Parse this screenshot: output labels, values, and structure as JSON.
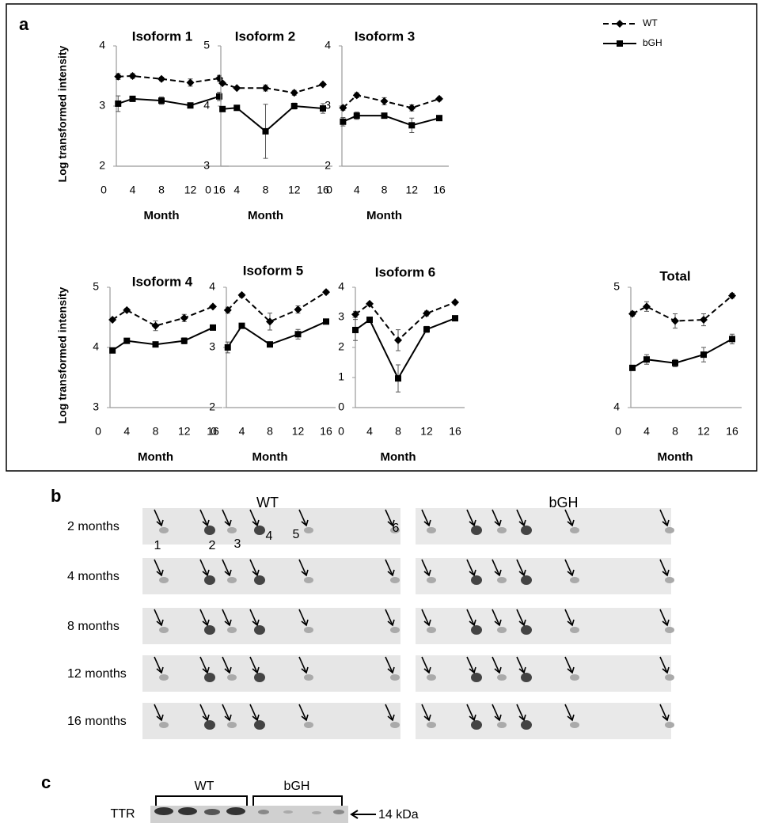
{
  "panel_a": {
    "label": "a"
  },
  "chart_data": [
    {
      "type": "line",
      "title": "Isoform 1",
      "xlabel": "Month",
      "ylabel": "Log transformed intensity",
      "x": [
        2,
        4,
        8,
        12,
        16
      ],
      "xlim": [
        0,
        16
      ],
      "xticks": [
        0,
        4,
        8,
        12,
        16
      ],
      "ylim": [
        2,
        4
      ],
      "yticks": [
        2,
        3,
        4
      ],
      "series": [
        {
          "name": "WT",
          "color": "#000000",
          "line_style": "dashed",
          "marker": "diamond",
          "values": [
            3.49,
            3.5,
            3.45,
            3.39,
            3.46
          ],
          "errors": [
            0.05,
            0.04,
            0.03,
            0.06,
            0.05
          ]
        },
        {
          "name": "bGH",
          "color": "#000000",
          "line_style": "solid",
          "marker": "square",
          "values": [
            3.04,
            3.12,
            3.09,
            3.01,
            3.16
          ],
          "errors": [
            0.13,
            0.04,
            0.06,
            0.04,
            0.07
          ]
        }
      ]
    },
    {
      "type": "line",
      "title": "Isoform 2",
      "xlabel": "Month",
      "x": [
        2,
        4,
        8,
        12,
        16
      ],
      "xlim": [
        0,
        16
      ],
      "xticks": [
        0,
        4,
        8,
        12,
        16
      ],
      "ylim": [
        3,
        5
      ],
      "yticks": [
        3,
        4,
        5
      ],
      "series": [
        {
          "name": "WT",
          "color": "#000000",
          "line_style": "dashed",
          "marker": "diamond",
          "values": [
            4.38,
            4.3,
            4.3,
            4.22,
            4.36
          ],
          "errors": [
            0.03,
            0.02,
            0.05,
            0.04,
            0.02
          ]
        },
        {
          "name": "bGH",
          "color": "#000000",
          "line_style": "solid",
          "marker": "square",
          "values": [
            3.95,
            3.97,
            3.58,
            4.0,
            3.96
          ],
          "errors": [
            0.02,
            0.02,
            0.45,
            0.05,
            0.08
          ]
        }
      ]
    },
    {
      "type": "line",
      "title": "Isoform 3",
      "xlabel": "Month",
      "legend": "upper right",
      "x": [
        2,
        4,
        8,
        12,
        16
      ],
      "xlim": [
        0,
        16
      ],
      "xticks": [
        0,
        4,
        8,
        12,
        16
      ],
      "ylim": [
        2,
        4
      ],
      "yticks": [
        2,
        3,
        4
      ],
      "series": [
        {
          "name": "WT",
          "color": "#000000",
          "line_style": "dashed",
          "marker": "diamond",
          "values": [
            2.97,
            3.18,
            3.08,
            2.97,
            3.12
          ],
          "errors": [
            0.04,
            0.04,
            0.06,
            0.05,
            0.03
          ]
        },
        {
          "name": "bGH",
          "color": "#000000",
          "line_style": "solid",
          "marker": "square",
          "values": [
            2.74,
            2.84,
            2.84,
            2.68,
            2.8
          ],
          "errors": [
            0.07,
            0.06,
            0.02,
            0.12,
            0.02
          ]
        }
      ]
    },
    {
      "type": "line",
      "title": "Isoform 4",
      "xlabel": "Month",
      "ylabel": "Log transformed intensity",
      "x": [
        2,
        4,
        8,
        12,
        16
      ],
      "xlim": [
        0,
        16
      ],
      "xticks": [
        0,
        4,
        8,
        12,
        16
      ],
      "ylim": [
        3,
        5
      ],
      "yticks": [
        3,
        4,
        5
      ],
      "series": [
        {
          "name": "WT",
          "color": "#000000",
          "line_style": "dashed",
          "marker": "diamond",
          "values": [
            4.46,
            4.62,
            4.36,
            4.49,
            4.68
          ],
          "errors": [
            0.02,
            0.03,
            0.08,
            0.06,
            0.02
          ]
        },
        {
          "name": "bGH",
          "color": "#000000",
          "line_style": "solid",
          "marker": "square",
          "values": [
            3.95,
            4.11,
            4.05,
            4.11,
            4.33
          ],
          "errors": [
            0.02,
            0.02,
            0.02,
            0.05,
            0.02
          ]
        }
      ]
    },
    {
      "type": "line",
      "title": "Isoform 5",
      "xlabel": "Month",
      "x": [
        2,
        4,
        8,
        12,
        16
      ],
      "xlim": [
        0,
        16
      ],
      "xticks": [
        0,
        4,
        8,
        12,
        16
      ],
      "ylim": [
        2,
        4
      ],
      "yticks": [
        2,
        3,
        4
      ],
      "series": [
        {
          "name": "WT",
          "color": "#000000",
          "line_style": "dashed",
          "marker": "diamond",
          "values": [
            3.62,
            3.87,
            3.43,
            3.63,
            3.92
          ],
          "errors": [
            0.05,
            0.03,
            0.14,
            0.06,
            0.03
          ]
        },
        {
          "name": "bGH",
          "color": "#000000",
          "line_style": "solid",
          "marker": "square",
          "values": [
            3.0,
            3.36,
            3.05,
            3.22,
            3.43
          ],
          "errors": [
            0.09,
            0.03,
            0.02,
            0.08,
            0.04
          ]
        }
      ]
    },
    {
      "type": "line",
      "title": "Isoform 6",
      "xlabel": "Month",
      "x": [
        2,
        4,
        8,
        12,
        16
      ],
      "xlim": [
        0,
        16
      ],
      "xticks": [
        0,
        4,
        8,
        12,
        16
      ],
      "ylim": [
        0,
        4
      ],
      "yticks": [
        0,
        1,
        2,
        3,
        4
      ],
      "series": [
        {
          "name": "WT",
          "color": "#000000",
          "line_style": "dashed",
          "marker": "diamond",
          "values": [
            3.1,
            3.45,
            2.24,
            3.13,
            3.5
          ],
          "errors": [
            0.1,
            0.05,
            0.35,
            0.08,
            0.05
          ]
        },
        {
          "name": "bGH",
          "color": "#000000",
          "line_style": "solid",
          "marker": "square",
          "values": [
            2.58,
            2.92,
            0.97,
            2.6,
            2.97
          ],
          "errors": [
            0.35,
            0.05,
            0.45,
            0.1,
            0.05
          ]
        }
      ]
    },
    {
      "type": "line",
      "title": "Total",
      "xlabel": "Month",
      "x": [
        2,
        4,
        8,
        12,
        16
      ],
      "xlim": [
        0,
        16
      ],
      "xticks": [
        0,
        4,
        8,
        12,
        16
      ],
      "ylim": [
        4,
        5
      ],
      "yticks": [
        4,
        5
      ],
      "series": [
        {
          "name": "WT",
          "color": "#000000",
          "line_style": "dashed",
          "marker": "diamond",
          "values": [
            4.78,
            4.84,
            4.72,
            4.73,
            4.93
          ],
          "errors": [
            0.02,
            0.04,
            0.06,
            0.05,
            0.02
          ]
        },
        {
          "name": "bGH",
          "color": "#000000",
          "line_style": "solid",
          "marker": "square",
          "values": [
            4.33,
            4.4,
            4.37,
            4.44,
            4.57
          ],
          "errors": [
            0.02,
            0.04,
            0.03,
            0.06,
            0.04
          ]
        }
      ]
    }
  ],
  "panel_b": {
    "label": "b",
    "groups": [
      "WT",
      "bGH"
    ],
    "rows": [
      "2 months",
      "4 months",
      "8 months",
      "12 months",
      "16 months"
    ],
    "spot_numbers": [
      "1",
      "2",
      "3",
      "4",
      "5",
      "6"
    ]
  },
  "panel_c": {
    "label": "c",
    "groups": [
      "WT",
      "bGH"
    ],
    "protein": "TTR",
    "marker": "14 kDa"
  }
}
